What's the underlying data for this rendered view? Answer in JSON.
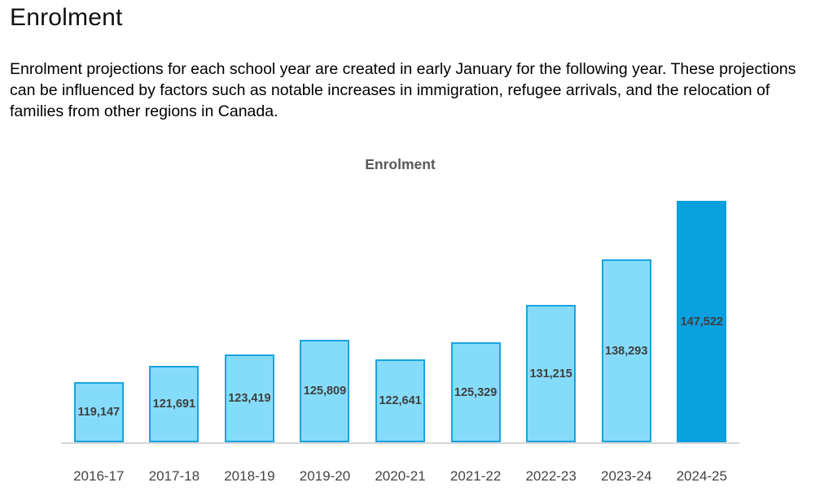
{
  "page": {
    "heading": "Enrolment",
    "paragraph": "Enrolment projections for each school year are created in early January for the following year. These projections can be influenced by factors such as notable increases in immigration, refugee arrivals, and the relocation of families from other regions in Canada."
  },
  "chart_data": {
    "type": "bar",
    "title": "Enrolment",
    "categories": [
      "2016-17",
      "2017-18",
      "2018-19",
      "2019-20",
      "2020-21",
      "2021-22",
      "2022-23",
      "2023-24",
      "2024-25"
    ],
    "values": [
      119147,
      121691,
      123419,
      125809,
      122641,
      125329,
      131215,
      138293,
      147522
    ],
    "value_labels": [
      "119,147",
      "121,691",
      "123,419",
      "125,809",
      "122,641",
      "125,329",
      "131,215",
      "138,293",
      "147,522"
    ],
    "xlabel": "",
    "ylabel": "",
    "ylim": [
      109700,
      147522
    ],
    "grid": false,
    "legend": false,
    "label_position": "inside-center",
    "highlight_index": 8,
    "colors": {
      "bar_fill": "#85dcfa",
      "bar_border": "#1ba2e0",
      "highlight_fill": "#0a9fde",
      "axis_line": "#d6d6d6",
      "data_label": "#3f3f3f",
      "title_text": "#595959",
      "tick_text": "#444444"
    }
  }
}
